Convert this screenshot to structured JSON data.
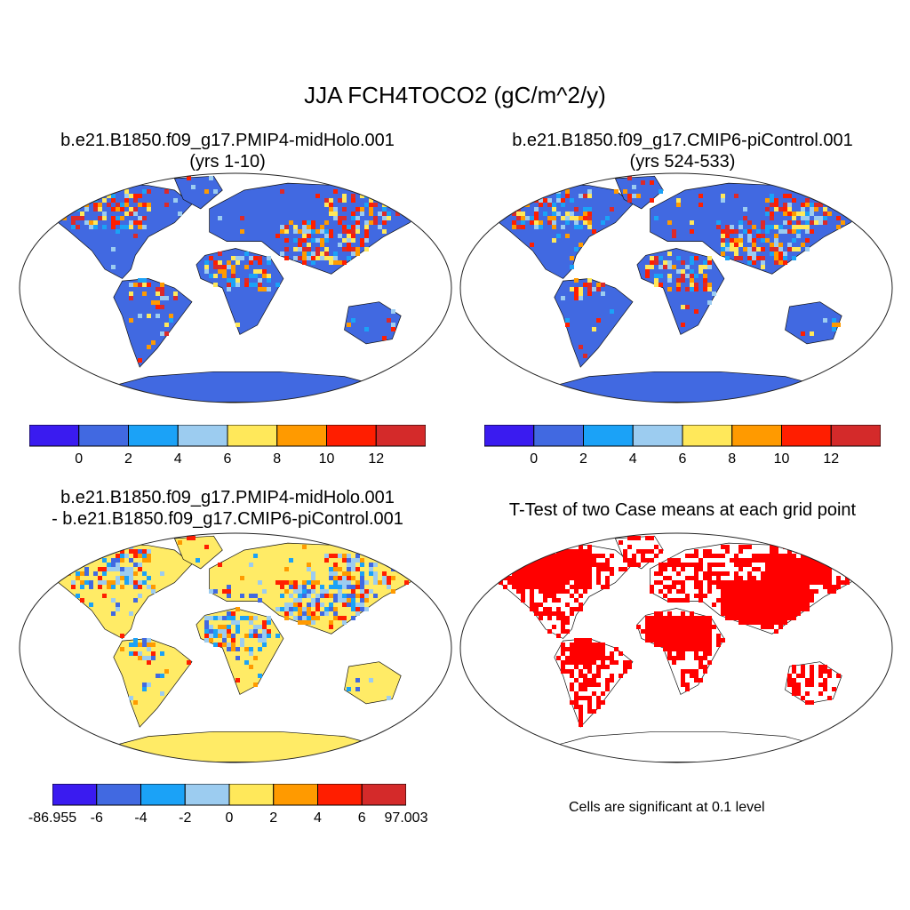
{
  "main_title": "JJA FCH4TOCO2 (gC/m^2/y)",
  "panels": [
    {
      "title_line1": "b.e21.B1850.f09_g17.PMIP4-midHolo.001",
      "title_line2": "(yrs 1-10)",
      "kind": "field",
      "base_color": "#4169E1",
      "hot_colors": [
        "#DC2A2A",
        "#FF1E00",
        "#FF9A00",
        "#FFE85A",
        "#9CCCF0",
        "#1BA2F7"
      ]
    },
    {
      "title_line1": "b.e21.B1850.f09_g17.CMIP6-piControl.001",
      "title_line2": "(yrs 524-533)",
      "kind": "field",
      "base_color": "#4169E1",
      "hot_colors": [
        "#DC2A2A",
        "#FF1E00",
        "#FF9A00",
        "#FFE85A",
        "#9CCCF0",
        "#1BA2F7"
      ]
    },
    {
      "title_line1": "b.e21.B1850.f09_g17.PMIP4-midHolo.001",
      "title_line2": "- b.e21.B1850.f09_g17.CMIP6-piControl.001",
      "kind": "diff",
      "base_color": "#FFEB66",
      "hot_colors": [
        "#9CCCF0",
        "#9CCCF0",
        "#4169E1",
        "#1BA2F7",
        "#FF9A00",
        "#FF1E00"
      ]
    },
    {
      "title_line1": "T-Test of two Case means at each grid point",
      "title_line2": "",
      "kind": "ttest",
      "base_color": "#FFFFFF",
      "hot_colors": [
        "#FF0000"
      ]
    }
  ],
  "colorbar_field": {
    "colors": [
      "#3A1BF0",
      "#4169E1",
      "#1BA2F7",
      "#9CCCF0",
      "#FFE85A",
      "#FF9A00",
      "#FF1E00",
      "#D42A2A"
    ],
    "labels": [
      "0",
      "2",
      "4",
      "6",
      "8",
      "10",
      "12"
    ]
  },
  "colorbar_diff": {
    "colors": [
      "#3A1BF0",
      "#4169E1",
      "#1BA2F7",
      "#9CCCF0",
      "#FFE85A",
      "#FF9A00",
      "#FF1E00",
      "#D42A2A"
    ],
    "labels": [
      "-86.955",
      "-6",
      "-4",
      "-2",
      "0",
      "2",
      "4",
      "6",
      "97.003"
    ]
  },
  "ttest_note": "Cells are significant at 0.1 level"
}
